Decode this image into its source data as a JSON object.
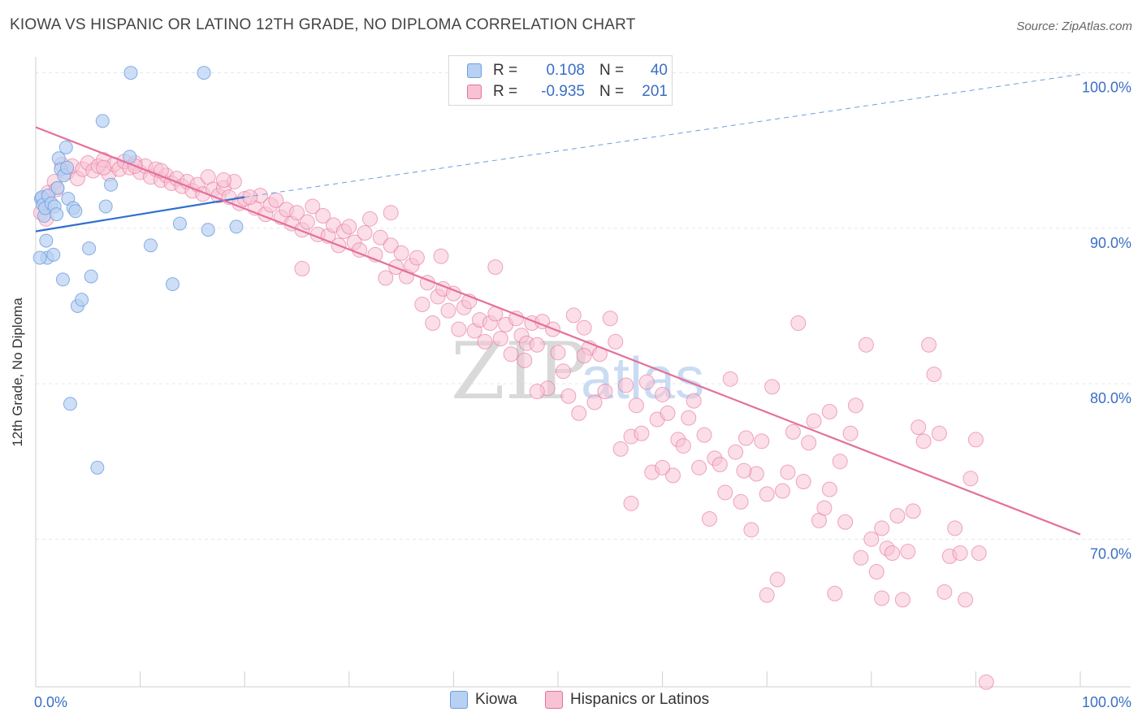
{
  "title": "KIOWA VS HISPANIC OR LATINO 12TH GRADE, NO DIPLOMA CORRELATION CHART",
  "source": "Source: ZipAtlas.com",
  "watermark": {
    "zip": "ZIP",
    "atlas": "atlas"
  },
  "legend_top": {
    "rows": [
      {
        "r_label": "R =",
        "r_value": "0.108",
        "n_label": "N =",
        "n_value": "40",
        "color": "#a9c6ef"
      },
      {
        "r_label": "R =",
        "r_value": "-0.935",
        "n_label": "N =",
        "n_value": "201",
        "color": "#f5b8cc"
      }
    ]
  },
  "chart_data": {
    "type": "scatter",
    "title": "KIOWA VS HISPANIC OR LATINO 12TH GRADE, NO DIPLOMA CORRELATION CHART",
    "xlabel": "",
    "ylabel": "12th Grade, No Diploma",
    "xlim": [
      0,
      100
    ],
    "ylim": [
      60.5,
      100.5
    ],
    "x_tick_labels": [
      "0.0%",
      "100.0%"
    ],
    "y_tick_labels": [
      "100.0%",
      "90.0%",
      "80.0%",
      "70.0%"
    ],
    "y_ticks": [
      100,
      90,
      80,
      70
    ],
    "grid": true,
    "legend": "bottom-center",
    "series": [
      {
        "name": "Kiowa",
        "color": "#6a9ee0",
        "fill": "#b8d0f2",
        "trend": {
          "x0": 0,
          "y0": 89.8,
          "x1": 20,
          "y1": 92.0,
          "dashed_to": [
            100,
            99.9
          ]
        },
        "points": [
          [
            0.5,
            91.9
          ],
          [
            0.6,
            92.0
          ],
          [
            0.7,
            91.5
          ],
          [
            0.8,
            90.8
          ],
          [
            0.9,
            91.3
          ],
          [
            1.0,
            89.2
          ],
          [
            1.1,
            88.1
          ],
          [
            1.2,
            92.1
          ],
          [
            1.5,
            91.6
          ],
          [
            1.7,
            88.3
          ],
          [
            1.8,
            91.4
          ],
          [
            2.0,
            90.9
          ],
          [
            2.1,
            92.6
          ],
          [
            2.2,
            94.5
          ],
          [
            2.4,
            93.8
          ],
          [
            2.6,
            86.7
          ],
          [
            2.7,
            93.4
          ],
          [
            2.9,
            95.2
          ],
          [
            3.1,
            91.9
          ],
          [
            3.3,
            78.7
          ],
          [
            3.6,
            91.3
          ],
          [
            3.8,
            91.1
          ],
          [
            4.0,
            85.0
          ],
          [
            4.4,
            85.4
          ],
          [
            5.1,
            88.7
          ],
          [
            5.3,
            86.9
          ],
          [
            5.9,
            74.6
          ],
          [
            6.4,
            96.9
          ],
          [
            6.7,
            91.4
          ],
          [
            7.2,
            92.8
          ],
          [
            9.0,
            94.6
          ],
          [
            9.1,
            100.0
          ],
          [
            11.0,
            88.9
          ],
          [
            13.1,
            86.4
          ],
          [
            13.8,
            90.3
          ],
          [
            16.1,
            100.0
          ],
          [
            16.5,
            89.9
          ],
          [
            19.2,
            90.1
          ],
          [
            0.4,
            88.1
          ],
          [
            3.0,
            93.9
          ]
        ]
      },
      {
        "name": "Hispanics or Latinos",
        "color": "#e4709a",
        "fill": "#f7c2d4",
        "trend": {
          "x0": 0,
          "y0": 96.5,
          "x1": 100,
          "y1": 70.3
        },
        "points": [
          [
            0.5,
            91.0
          ],
          [
            0.8,
            91.8
          ],
          [
            1.2,
            92.3
          ],
          [
            1.8,
            93.0
          ],
          [
            2.0,
            92.5
          ],
          [
            2.5,
            94.1
          ],
          [
            3.0,
            93.6
          ],
          [
            3.5,
            94.0
          ],
          [
            4.0,
            93.2
          ],
          [
            4.5,
            93.8
          ],
          [
            5.0,
            94.2
          ],
          [
            5.5,
            93.7
          ],
          [
            6.0,
            94.0
          ],
          [
            6.5,
            94.4
          ],
          [
            7.0,
            93.5
          ],
          [
            7.5,
            94.1
          ],
          [
            8.0,
            93.8
          ],
          [
            8.5,
            94.3
          ],
          [
            9.0,
            93.9
          ],
          [
            9.5,
            94.2
          ],
          [
            10.0,
            93.6
          ],
          [
            10.5,
            94.0
          ],
          [
            11.0,
            93.3
          ],
          [
            11.5,
            93.8
          ],
          [
            12.0,
            93.1
          ],
          [
            12.5,
            93.4
          ],
          [
            13.0,
            92.9
          ],
          [
            13.5,
            93.2
          ],
          [
            14.0,
            92.7
          ],
          [
            14.5,
            93.0
          ],
          [
            15.0,
            92.4
          ],
          [
            15.5,
            92.8
          ],
          [
            16.0,
            92.2
          ],
          [
            16.5,
            93.3
          ],
          [
            17.0,
            92.5
          ],
          [
            17.5,
            92.1
          ],
          [
            18.0,
            92.6
          ],
          [
            18.5,
            92.0
          ],
          [
            19.0,
            93.0
          ],
          [
            19.5,
            91.6
          ],
          [
            20.0,
            91.9
          ],
          [
            21.0,
            91.3
          ],
          [
            21.5,
            92.1
          ],
          [
            22.0,
            90.9
          ],
          [
            22.5,
            91.5
          ],
          [
            23.0,
            91.8
          ],
          [
            23.5,
            90.7
          ],
          [
            24.0,
            91.2
          ],
          [
            24.5,
            90.3
          ],
          [
            25.0,
            91.0
          ],
          [
            25.5,
            89.9
          ],
          [
            26.0,
            90.4
          ],
          [
            26.5,
            91.4
          ],
          [
            27.0,
            89.6
          ],
          [
            27.5,
            90.8
          ],
          [
            28.0,
            89.5
          ],
          [
            28.5,
            90.2
          ],
          [
            29.0,
            88.9
          ],
          [
            29.5,
            89.8
          ],
          [
            30.0,
            90.1
          ],
          [
            30.5,
            89.1
          ],
          [
            31.0,
            88.6
          ],
          [
            31.5,
            89.7
          ],
          [
            32.0,
            90.6
          ],
          [
            32.5,
            88.3
          ],
          [
            33.0,
            89.4
          ],
          [
            33.5,
            86.8
          ],
          [
            34.0,
            88.9
          ],
          [
            34.5,
            87.5
          ],
          [
            35.0,
            88.4
          ],
          [
            35.5,
            86.9
          ],
          [
            36.0,
            87.6
          ],
          [
            36.5,
            88.1
          ],
          [
            37.0,
            85.1
          ],
          [
            37.5,
            86.5
          ],
          [
            38.0,
            83.9
          ],
          [
            38.5,
            85.6
          ],
          [
            39.0,
            86.1
          ],
          [
            39.5,
            84.7
          ],
          [
            40.0,
            85.8
          ],
          [
            40.5,
            83.5
          ],
          [
            41.0,
            84.9
          ],
          [
            41.5,
            85.3
          ],
          [
            42.0,
            83.4
          ],
          [
            42.5,
            84.1
          ],
          [
            43.0,
            82.7
          ],
          [
            43.5,
            83.9
          ],
          [
            44.0,
            84.5
          ],
          [
            44.5,
            82.9
          ],
          [
            45.0,
            83.8
          ],
          [
            45.5,
            81.9
          ],
          [
            46.0,
            84.2
          ],
          [
            46.5,
            83.1
          ],
          [
            47.0,
            82.6
          ],
          [
            47.5,
            83.9
          ],
          [
            48.0,
            82.5
          ],
          [
            48.5,
            84.0
          ],
          [
            49.0,
            79.7
          ],
          [
            49.5,
            83.5
          ],
          [
            50.0,
            82.0
          ],
          [
            50.5,
            80.8
          ],
          [
            51.0,
            79.2
          ],
          [
            51.5,
            84.4
          ],
          [
            52.0,
            78.1
          ],
          [
            52.5,
            83.6
          ],
          [
            53.0,
            82.3
          ],
          [
            53.5,
            78.8
          ],
          [
            54.0,
            81.9
          ],
          [
            54.5,
            79.5
          ],
          [
            55.0,
            84.2
          ],
          [
            55.5,
            82.7
          ],
          [
            56.0,
            75.8
          ],
          [
            56.5,
            79.9
          ],
          [
            57.0,
            76.6
          ],
          [
            57.5,
            78.6
          ],
          [
            58.0,
            76.8
          ],
          [
            58.5,
            80.1
          ],
          [
            59.0,
            74.3
          ],
          [
            59.5,
            77.7
          ],
          [
            60.0,
            79.3
          ],
          [
            60.5,
            78.1
          ],
          [
            61.0,
            74.1
          ],
          [
            61.5,
            76.4
          ],
          [
            62.0,
            76.0
          ],
          [
            62.5,
            77.8
          ],
          [
            63.0,
            78.9
          ],
          [
            63.5,
            74.6
          ],
          [
            64.0,
            76.7
          ],
          [
            64.5,
            71.3
          ],
          [
            65.0,
            75.2
          ],
          [
            65.5,
            74.8
          ],
          [
            66.0,
            73.0
          ],
          [
            66.5,
            80.3
          ],
          [
            67.0,
            75.6
          ],
          [
            67.5,
            72.4
          ],
          [
            68.0,
            76.5
          ],
          [
            68.5,
            70.6
          ],
          [
            69.0,
            74.2
          ],
          [
            69.5,
            76.3
          ],
          [
            70.0,
            72.9
          ],
          [
            70.5,
            79.8
          ],
          [
            71.0,
            67.4
          ],
          [
            71.5,
            73.1
          ],
          [
            72.0,
            74.3
          ],
          [
            72.5,
            76.9
          ],
          [
            73.0,
            83.9
          ],
          [
            73.5,
            73.7
          ],
          [
            74.0,
            76.2
          ],
          [
            74.5,
            77.6
          ],
          [
            75.0,
            71.2
          ],
          [
            75.5,
            72.0
          ],
          [
            76.0,
            78.2
          ],
          [
            76.5,
            66.5
          ],
          [
            77.0,
            75.0
          ],
          [
            77.5,
            71.1
          ],
          [
            78.0,
            76.8
          ],
          [
            78.5,
            78.6
          ],
          [
            79.0,
            68.8
          ],
          [
            79.5,
            82.5
          ],
          [
            80.0,
            70.0
          ],
          [
            80.5,
            67.9
          ],
          [
            81.0,
            66.2
          ],
          [
            81.5,
            69.4
          ],
          [
            82.0,
            69.1
          ],
          [
            82.5,
            71.5
          ],
          [
            83.0,
            66.1
          ],
          [
            83.5,
            69.2
          ],
          [
            84.0,
            71.8
          ],
          [
            84.5,
            77.2
          ],
          [
            85.0,
            76.3
          ],
          [
            85.5,
            82.5
          ],
          [
            86.0,
            80.6
          ],
          [
            86.5,
            76.8
          ],
          [
            87.0,
            66.6
          ],
          [
            87.5,
            68.9
          ],
          [
            88.0,
            70.7
          ],
          [
            88.5,
            69.1
          ],
          [
            89.0,
            66.1
          ],
          [
            89.5,
            73.9
          ],
          [
            90.0,
            76.4
          ],
          [
            25.5,
            87.4
          ],
          [
            34.0,
            91.0
          ],
          [
            38.8,
            88.2
          ],
          [
            44.0,
            87.5
          ],
          [
            46.8,
            81.5
          ],
          [
            60.0,
            74.6
          ],
          [
            67.8,
            74.4
          ],
          [
            76.0,
            73.2
          ],
          [
            81.0,
            70.7
          ],
          [
            90.3,
            69.1
          ],
          [
            91.0,
            60.8
          ],
          [
            20.5,
            92.0
          ],
          [
            12.0,
            93.7
          ],
          [
            18.0,
            93.1
          ],
          [
            9.5,
            94.0
          ],
          [
            6.5,
            93.9
          ],
          [
            48.0,
            79.5
          ],
          [
            52.5,
            81.8
          ],
          [
            57.0,
            72.3
          ],
          [
            70.0,
            66.4
          ],
          [
            1.0,
            90.6
          ]
        ]
      }
    ]
  }
}
